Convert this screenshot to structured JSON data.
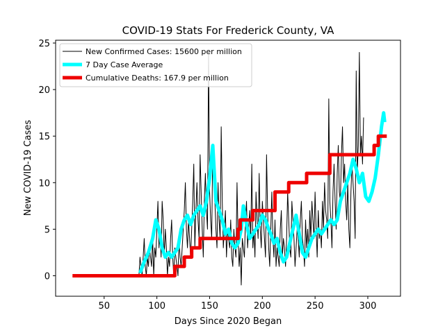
{
  "chart_data": {
    "type": "line",
    "title": "COVID-19 Stats For Frederick County, VA",
    "xlabel": "Days Since 2020 Began",
    "ylabel": "New COVID-19 Cases",
    "xlim": [
      4,
      331
    ],
    "ylim": [
      -2.2,
      25.3
    ],
    "xticks": [
      50,
      100,
      150,
      200,
      250,
      300
    ],
    "yticks": [
      0,
      5,
      10,
      15,
      20,
      25
    ],
    "grid": false,
    "legend_position": "top-left",
    "series": [
      {
        "name": "New Confirmed Cases: 15600 per million",
        "color": "#000000",
        "x_start": 83,
        "x_step": 1,
        "values": [
          0,
          2,
          1,
          0,
          2,
          4,
          1,
          0,
          2,
          1,
          3,
          2,
          1,
          4,
          0,
          3,
          2,
          5,
          8,
          3,
          5,
          2,
          8,
          6,
          2,
          5,
          3,
          0,
          2,
          1,
          4,
          6,
          2,
          0,
          3,
          2,
          1,
          0,
          4,
          2,
          1,
          3,
          5,
          7,
          10,
          5,
          3,
          6,
          4,
          2,
          5,
          8,
          12,
          3,
          7,
          10,
          6,
          4,
          13,
          9,
          5,
          2,
          8,
          11,
          7,
          5,
          24,
          9,
          6,
          4,
          14,
          12,
          8,
          5,
          3,
          10,
          6,
          4,
          16,
          8,
          3,
          5,
          7,
          2,
          5,
          4,
          3,
          6,
          2,
          1,
          5,
          3,
          2,
          10,
          4,
          1,
          3,
          -1,
          4,
          3,
          2,
          6,
          8,
          3,
          5,
          7,
          4,
          12,
          3,
          5,
          2,
          9,
          6,
          4,
          11,
          5,
          3,
          8,
          6,
          4,
          2,
          13,
          7,
          3,
          1,
          5,
          9,
          4,
          2,
          6,
          1,
          3,
          2,
          1,
          5,
          7,
          2,
          4,
          3,
          1,
          4,
          9,
          6,
          3,
          2,
          8,
          6,
          4,
          1,
          3,
          5,
          4,
          2,
          6,
          8,
          4,
          3,
          1,
          6,
          3,
          5,
          2,
          7,
          4,
          8,
          6,
          4,
          9,
          5,
          2,
          7,
          4,
          5,
          3,
          8,
          5,
          10,
          7,
          6,
          4,
          19,
          8,
          6,
          3,
          9,
          12,
          8,
          5,
          11,
          14,
          9,
          8,
          13,
          16,
          10,
          12,
          8,
          6,
          10,
          5,
          3,
          9,
          12,
          10,
          8,
          4,
          22,
          11,
          14,
          24,
          13,
          15,
          12,
          17
        ],
        "line_width": 1
      },
      {
        "name": "7 Day Case Average",
        "color": "#00ffff",
        "points": [
          [
            84,
            0.3
          ],
          [
            88,
            1.5
          ],
          [
            92,
            2.5
          ],
          [
            96,
            4
          ],
          [
            99,
            6
          ],
          [
            102,
            5
          ],
          [
            105,
            3
          ],
          [
            108,
            2
          ],
          [
            111,
            2.5
          ],
          [
            114,
            2
          ],
          [
            117,
            2.5
          ],
          [
            120,
            3
          ],
          [
            123,
            5
          ],
          [
            126,
            6
          ],
          [
            129,
            6.5
          ],
          [
            132,
            5.5
          ],
          [
            135,
            6.5
          ],
          [
            138,
            7
          ],
          [
            141,
            7.5
          ],
          [
            144,
            6.5
          ],
          [
            147,
            8
          ],
          [
            150,
            10.5
          ],
          [
            153,
            14
          ],
          [
            156,
            8
          ],
          [
            159,
            7
          ],
          [
            162,
            6
          ],
          [
            165,
            4.5
          ],
          [
            168,
            5
          ],
          [
            171,
            3.5
          ],
          [
            174,
            3
          ],
          [
            177,
            3.5
          ],
          [
            180,
            5
          ],
          [
            182,
            7.5
          ],
          [
            185,
            5.5
          ],
          [
            188,
            4
          ],
          [
            191,
            4.5
          ],
          [
            194,
            5
          ],
          [
            197,
            5.5
          ],
          [
            200,
            6.5
          ],
          [
            203,
            6
          ],
          [
            206,
            5
          ],
          [
            208,
            4.5
          ],
          [
            211,
            3.5
          ],
          [
            214,
            4
          ],
          [
            217,
            2.5
          ],
          [
            220,
            1.5
          ],
          [
            223,
            2
          ],
          [
            226,
            3.5
          ],
          [
            229,
            5
          ],
          [
            232,
            6.5
          ],
          [
            235,
            4.5
          ],
          [
            238,
            2.5
          ],
          [
            241,
            2
          ],
          [
            244,
            3
          ],
          [
            247,
            4
          ],
          [
            250,
            4.5
          ],
          [
            253,
            5
          ],
          [
            256,
            4.5
          ],
          [
            259,
            5
          ],
          [
            262,
            5.5
          ],
          [
            265,
            6
          ],
          [
            268,
            5.5
          ],
          [
            271,
            6
          ],
          [
            274,
            8
          ],
          [
            277,
            9
          ],
          [
            280,
            10
          ],
          [
            283,
            11
          ],
          [
            286,
            12.5
          ],
          [
            289,
            11.5
          ],
          [
            292,
            10
          ],
          [
            295,
            11
          ],
          [
            298,
            8.5
          ],
          [
            301,
            8
          ],
          [
            304,
            9
          ],
          [
            307,
            10.5
          ],
          [
            310,
            13
          ],
          [
            313,
            16
          ],
          [
            315,
            17.5
          ],
          [
            316,
            16.5
          ]
        ],
        "line_width": 5
      },
      {
        "name": "Cumulative Deaths: 167.9 per million",
        "color": "#ee0000",
        "points": [
          [
            20,
            0
          ],
          [
            117,
            0
          ],
          [
            117,
            1
          ],
          [
            126,
            1
          ],
          [
            126,
            2
          ],
          [
            133,
            2
          ],
          [
            133,
            3
          ],
          [
            141,
            3
          ],
          [
            141,
            4
          ],
          [
            177,
            4
          ],
          [
            177,
            5
          ],
          [
            179,
            5
          ],
          [
            179,
            6
          ],
          [
            191,
            6
          ],
          [
            191,
            7
          ],
          [
            212,
            7
          ],
          [
            212,
            9
          ],
          [
            225,
            9
          ],
          [
            225,
            10
          ],
          [
            242,
            10
          ],
          [
            242,
            11
          ],
          [
            264,
            11
          ],
          [
            264,
            13
          ],
          [
            306,
            13
          ],
          [
            306,
            14
          ],
          [
            310,
            14
          ],
          [
            310,
            15
          ],
          [
            318,
            15
          ]
        ],
        "line_width": 5
      }
    ]
  }
}
